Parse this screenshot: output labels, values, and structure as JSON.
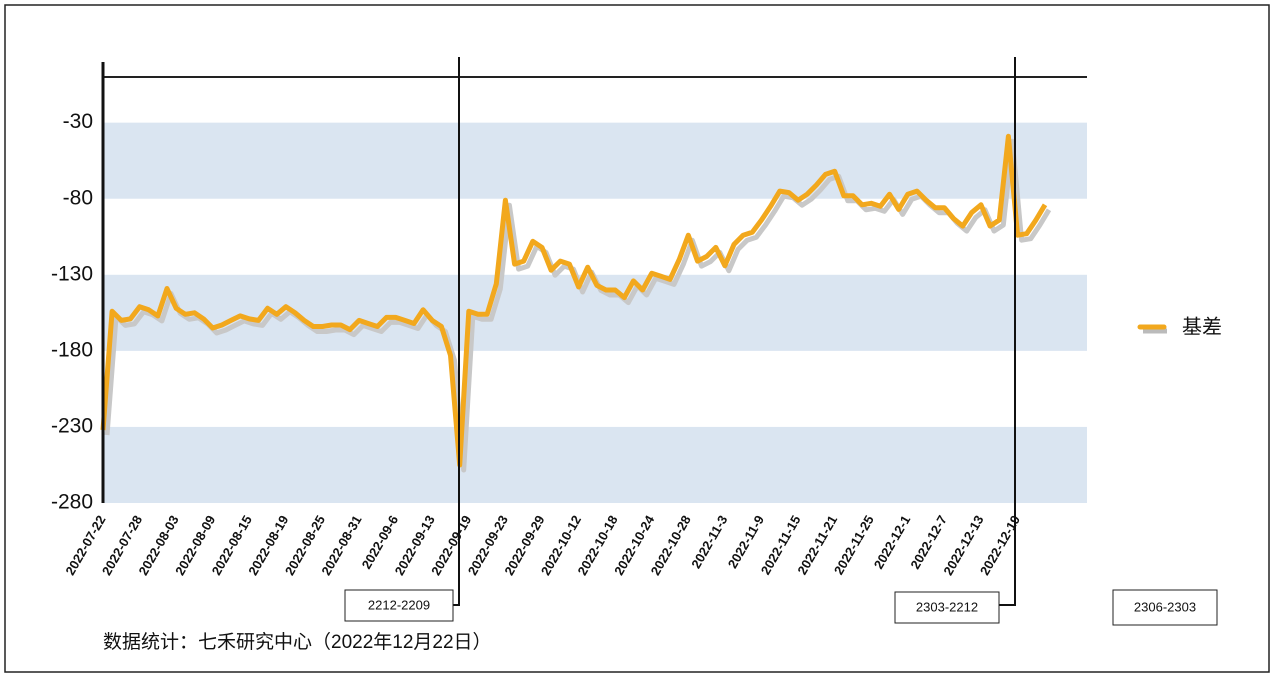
{
  "chart_data": {
    "type": "line",
    "categories": [
      "2022-07-22",
      null,
      null,
      null,
      "2022-07-28",
      null,
      null,
      null,
      "2022-08-03",
      null,
      null,
      null,
      "2022-08-09",
      null,
      null,
      null,
      "2022-08-15",
      null,
      null,
      null,
      "2022-08-19",
      null,
      null,
      null,
      "2022-08-25",
      null,
      null,
      null,
      "2022-08-31",
      null,
      null,
      null,
      "2022-09-6",
      null,
      null,
      null,
      "2022-09-13",
      null,
      null,
      null,
      "2022-09-19",
      null,
      null,
      null,
      "2022-09-23",
      null,
      null,
      null,
      "2022-09-29",
      null,
      null,
      null,
      "2022-10-12",
      null,
      null,
      null,
      "2022-10-18",
      null,
      null,
      null,
      "2022-10-24",
      null,
      null,
      null,
      "2022-10-28",
      null,
      null,
      null,
      "2022-11-3",
      null,
      null,
      null,
      "2022-11-9",
      null,
      null,
      null,
      "2022-11-15",
      null,
      null,
      null,
      "2022-11-21",
      null,
      null,
      null,
      "2022-11-25",
      null,
      null,
      null,
      "2022-12-1",
      null,
      null,
      null,
      "2022-12-7",
      null,
      null,
      null,
      "2022-12-13",
      null,
      null,
      null,
      "2022-12-19",
      null,
      null,
      null
    ],
    "series": [
      {
        "name": "基差",
        "color": "#f2a81d",
        "values": [
          -232,
          -154,
          -160,
          -159,
          -151,
          -153,
          -157,
          -139,
          -152,
          -156,
          -155,
          -159,
          -165,
          -163,
          -160,
          -157,
          -159,
          -160,
          -152,
          -156,
          -151,
          -155,
          -160,
          -164,
          -164,
          -163,
          -163,
          -166,
          -160,
          -162,
          -164,
          -158,
          -158,
          -160,
          -162,
          -153,
          -160,
          -164,
          -183,
          -255,
          -154,
          -156,
          -156,
          -136,
          -81,
          -123,
          -121,
          -108,
          -112,
          -127,
          -121,
          -123,
          -138,
          -125,
          -137,
          -140,
          -140,
          -145,
          -134,
          -140,
          -129,
          -131,
          -133,
          -120,
          -104,
          -121,
          -118,
          -112,
          -124,
          -110,
          -104,
          -102,
          -94,
          -85,
          -75,
          -76,
          -81,
          -77,
          -71,
          -64,
          -62,
          -78,
          -78,
          -84,
          -83,
          -85,
          -77,
          -87,
          -77,
          -75,
          -81,
          -86,
          -86,
          -93,
          -98,
          -89,
          -84,
          -98,
          -94,
          -39,
          -104,
          -103,
          -94,
          -84
        ]
      }
    ],
    "ylim": [
      -280,
      0
    ],
    "yticks": [
      -30,
      -80,
      -130,
      -180,
      -230,
      -280
    ],
    "band_color": "#dae5f1",
    "annotations": [
      "2212-2209",
      "2303-2212",
      "2306-2303"
    ],
    "source": "数据统计：七禾研究中心（2022年12月22日）"
  }
}
